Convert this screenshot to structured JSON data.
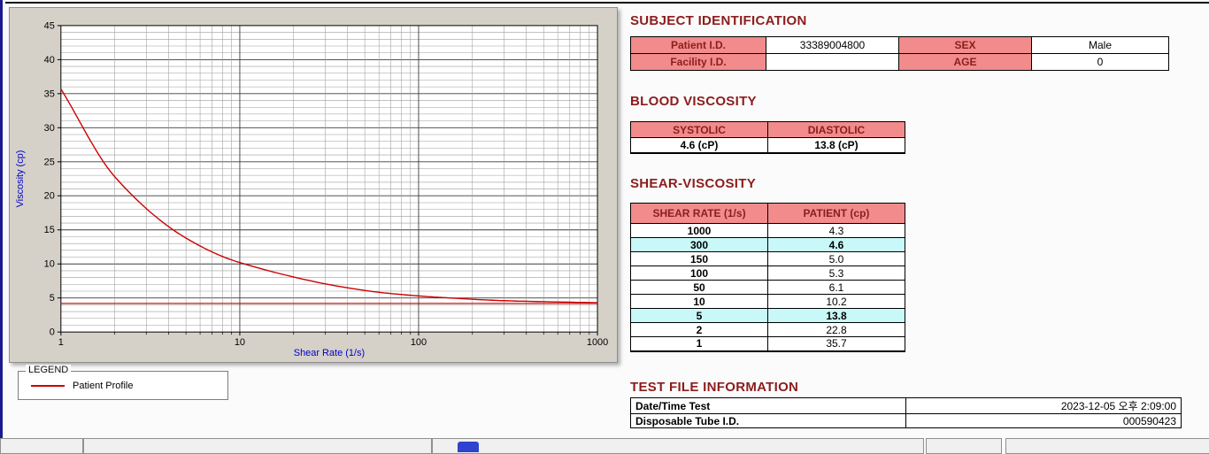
{
  "colors": {
    "accent_header": "#8b1d1d",
    "table_header_bg": "#f28b8b",
    "highlight_row_bg": "#c8f8f8",
    "series_red": "#cc0000",
    "axis_label_blue": "#0000c8"
  },
  "legend": {
    "title": "LEGEND",
    "series": "Patient Profile"
  },
  "subject": {
    "title": "SUBJECT IDENTIFICATION",
    "r0": {
      "l1": "Patient I.D.",
      "v1": "33389004800",
      "l2": "SEX",
      "v2": "Male"
    },
    "r1": {
      "l1": "Facility I.D.",
      "v1": "",
      "l2": "AGE",
      "v2": "0"
    }
  },
  "blood": {
    "title": "BLOOD VISCOSITY",
    "h1": "SYSTOLIC",
    "h2": "DIASTOLIC",
    "v1": "4.6 (cP)",
    "v2": "13.8 (cP)"
  },
  "shear": {
    "title": "SHEAR-VISCOSITY",
    "h1": "SHEAR RATE (1/s)",
    "h2": "PATIENT (cp)",
    "rows": [
      {
        "rate": "1000",
        "value": "4.3",
        "highlight": false
      },
      {
        "rate": "300",
        "value": "4.6",
        "highlight": true
      },
      {
        "rate": "150",
        "value": "5.0",
        "highlight": false
      },
      {
        "rate": "100",
        "value": "5.3",
        "highlight": false
      },
      {
        "rate": "50",
        "value": "6.1",
        "highlight": false
      },
      {
        "rate": "10",
        "value": "10.2",
        "highlight": false
      },
      {
        "rate": "5",
        "value": "13.8",
        "highlight": true
      },
      {
        "rate": "2",
        "value": "22.8",
        "highlight": false
      },
      {
        "rate": "1",
        "value": "35.7",
        "highlight": false
      }
    ]
  },
  "testfile": {
    "title": "TEST FILE INFORMATION",
    "rows": [
      {
        "label": "Date/Time Test",
        "value": "2023-12-05 오후 2:09:00"
      },
      {
        "label": "Disposable Tube I.D.",
        "value": "000590423"
      }
    ]
  },
  "chart_data": {
    "type": "line",
    "title": "",
    "xlabel": "Shear Rate (1/s)",
    "ylabel": "Viscosity (cp)",
    "x_scale": "log",
    "xlim": [
      1,
      1000
    ],
    "ylim": [
      0,
      45
    ],
    "y_tick_step": 5,
    "x_ticks": [
      1,
      10,
      100,
      1000
    ],
    "grid": true,
    "axis_label_color": "#0000c8",
    "reference_line_y": 4.2,
    "series": [
      {
        "name": "Patient Profile",
        "color": "#cc0000",
        "x": [
          1,
          2,
          5,
          10,
          50,
          100,
          150,
          300,
          1000
        ],
        "y": [
          35.7,
          22.8,
          13.8,
          10.2,
          6.1,
          5.3,
          5.0,
          4.6,
          4.3
        ]
      }
    ]
  }
}
